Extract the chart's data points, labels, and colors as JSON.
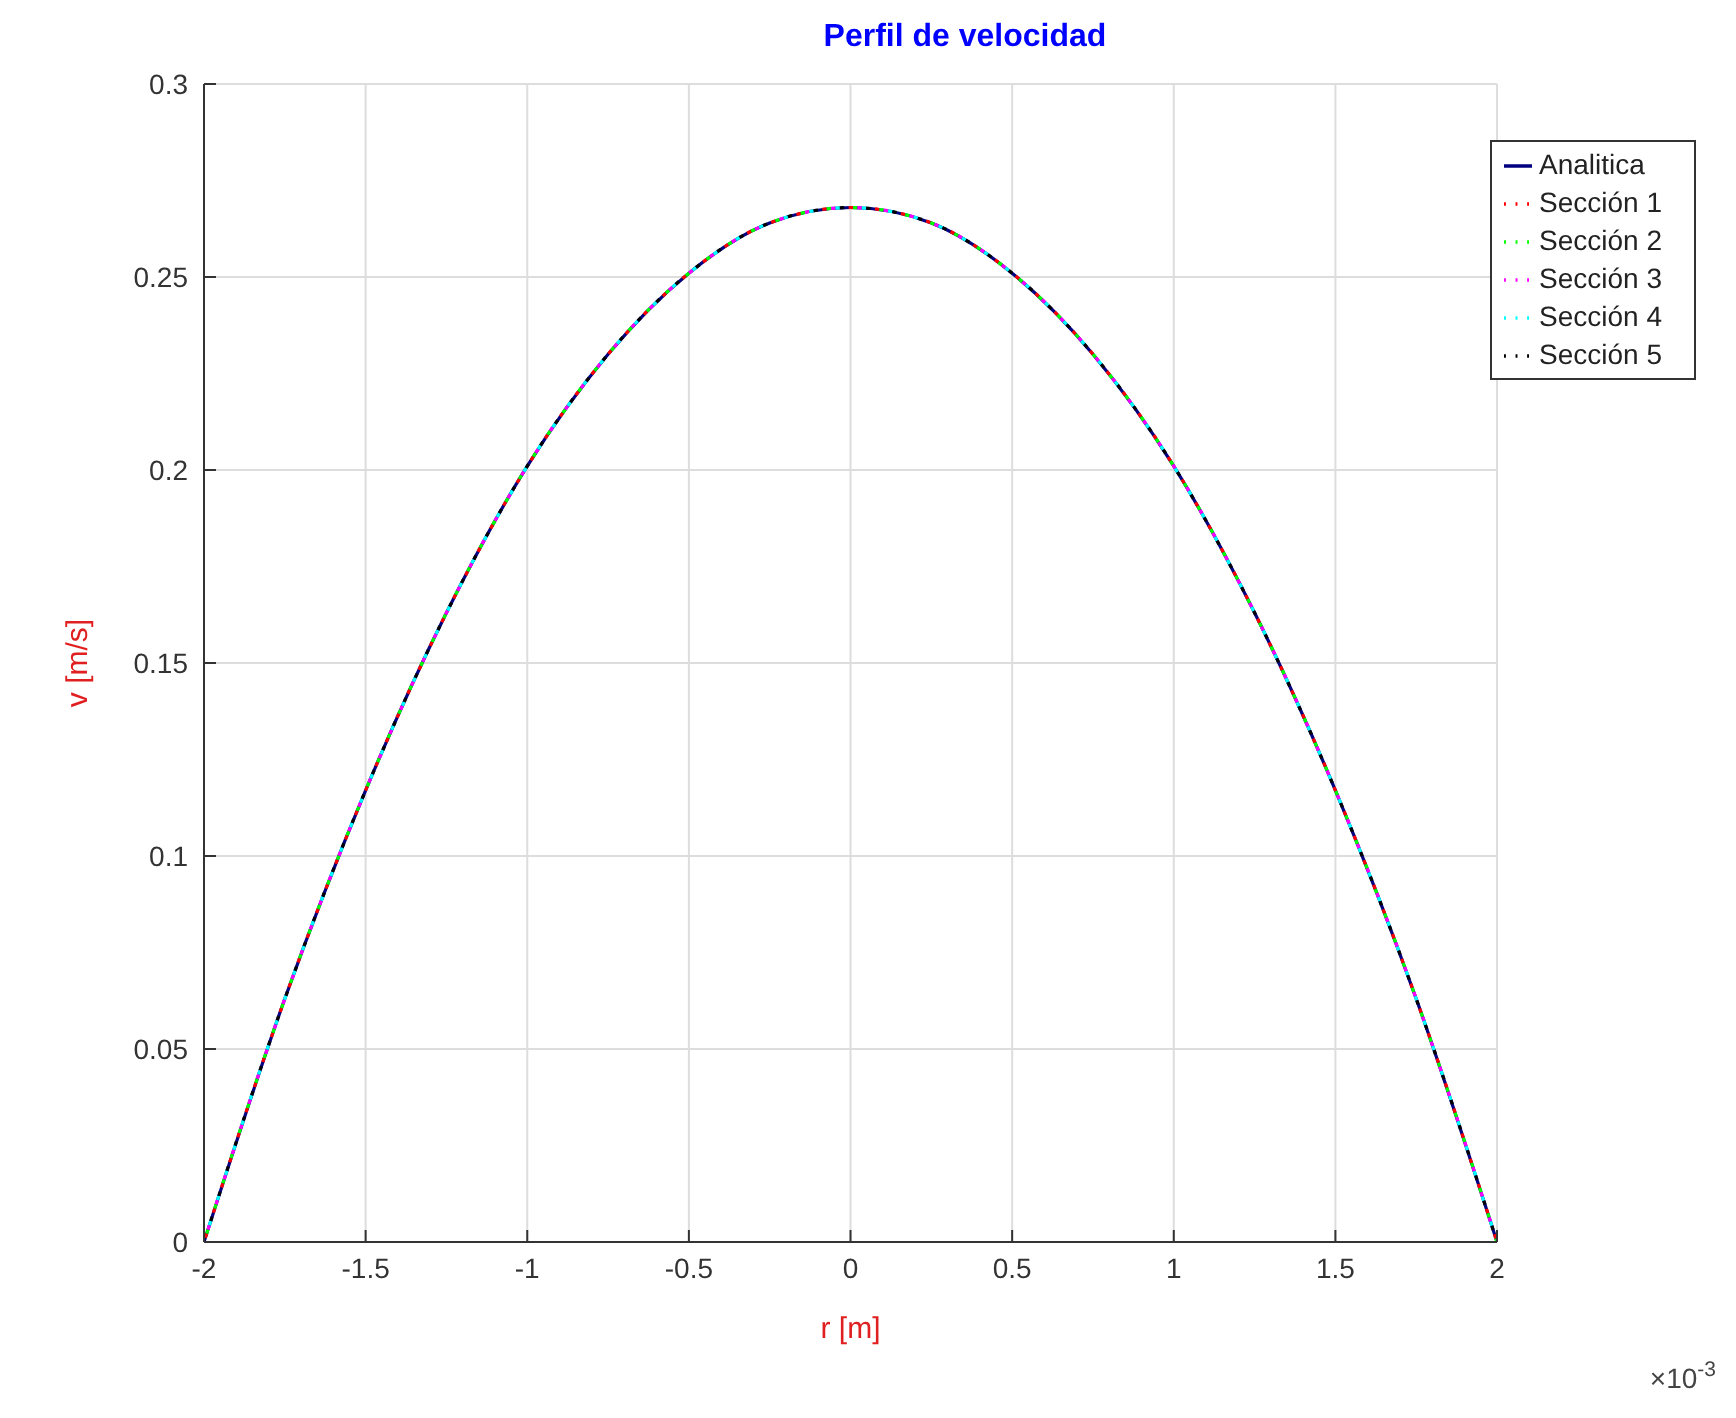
{
  "chart_data": {
    "type": "line",
    "title": "Perfil de velocidad",
    "xlabel": "r [m]",
    "ylabel": "v [m/s]",
    "x": [
      -2,
      -1.75,
      -1.5,
      -1.25,
      -1,
      -0.75,
      -0.5,
      -0.25,
      0,
      0.25,
      0.5,
      0.75,
      1,
      1.25,
      1.5,
      1.75,
      2
    ],
    "series": [
      {
        "name": "Analitica",
        "color": "#000080",
        "line_style": "solid",
        "values": [
          0,
          0.063,
          0.117,
          0.163,
          0.201,
          0.23,
          0.251,
          0.264,
          0.268,
          0.264,
          0.251,
          0.23,
          0.201,
          0.163,
          0.117,
          0.063,
          0
        ]
      },
      {
        "name": "Sección 1",
        "color": "#ff0000",
        "line_style": "dashed",
        "values": [
          0,
          0.063,
          0.117,
          0.163,
          0.201,
          0.23,
          0.251,
          0.264,
          0.268,
          0.264,
          0.251,
          0.23,
          0.201,
          0.163,
          0.117,
          0.063,
          0
        ]
      },
      {
        "name": "Sección 2",
        "color": "#00ff00",
        "line_style": "dashed",
        "values": [
          0,
          0.063,
          0.117,
          0.163,
          0.201,
          0.23,
          0.251,
          0.264,
          0.268,
          0.264,
          0.251,
          0.23,
          0.201,
          0.163,
          0.117,
          0.063,
          0
        ]
      },
      {
        "name": "Sección 3",
        "color": "#ff00ff",
        "line_style": "dashed",
        "values": [
          0,
          0.063,
          0.117,
          0.163,
          0.201,
          0.23,
          0.251,
          0.264,
          0.268,
          0.264,
          0.251,
          0.23,
          0.201,
          0.163,
          0.117,
          0.063,
          0
        ]
      },
      {
        "name": "Sección 4",
        "color": "#00ffff",
        "line_style": "dashed",
        "values": [
          0,
          0.063,
          0.117,
          0.163,
          0.201,
          0.23,
          0.251,
          0.264,
          0.268,
          0.264,
          0.251,
          0.23,
          0.201,
          0.163,
          0.117,
          0.063,
          0
        ]
      },
      {
        "name": "Sección 5",
        "color": "#000000",
        "line_style": "dashed",
        "values": [
          0,
          0.063,
          0.117,
          0.163,
          0.201,
          0.23,
          0.251,
          0.264,
          0.268,
          0.264,
          0.251,
          0.23,
          0.201,
          0.163,
          0.117,
          0.063,
          0
        ]
      }
    ],
    "xlim": [
      -2,
      2
    ],
    "xticks": [
      -2,
      -1.5,
      -1,
      -0.5,
      0,
      0.5,
      1,
      1.5,
      2
    ],
    "ylim": [
      0,
      0.3
    ],
    "yticks": [
      0,
      0.05,
      0.1,
      0.15,
      0.2,
      0.25,
      0.3
    ],
    "grid": true,
    "legend": "top right",
    "marker": "none",
    "annotations": [
      "×10$^{-3}$"
    ]
  }
}
